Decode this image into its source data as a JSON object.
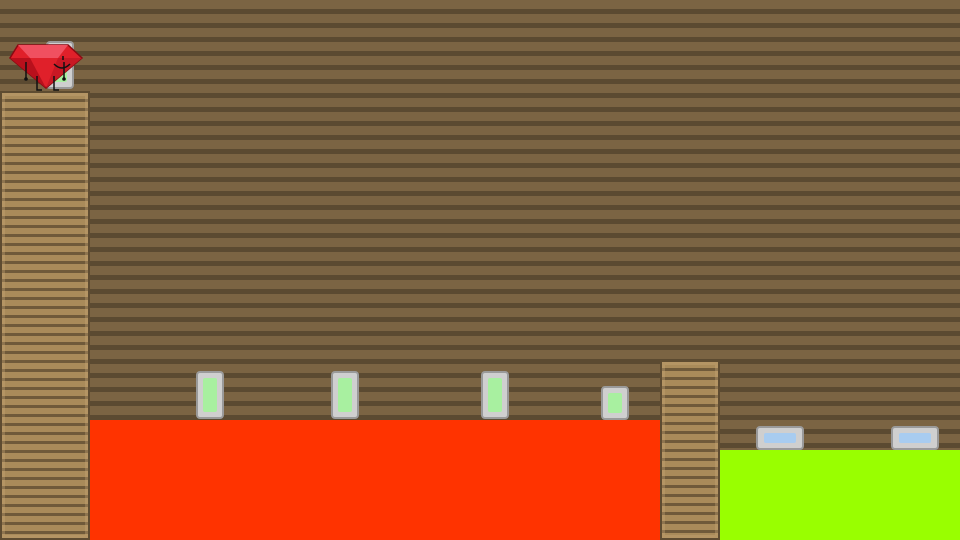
{
  "scene": {
    "colors": {
      "background": "#7b6443",
      "wall": "#a98b5a",
      "lava": "#ff3300",
      "acid": "#99ff00",
      "gem_green": "#a8f0a0",
      "pad_blue": "#a8ccf0",
      "player": "#e0202a"
    },
    "player": {
      "character": "ruby",
      "icon": "ruby-character-icon"
    },
    "hazards": [
      "lava",
      "acid"
    ],
    "collectibles": [
      "green-gem",
      "green-gem",
      "green-gem",
      "green-gem",
      "green-gem"
    ],
    "pads": [
      "blue-pad",
      "blue-pad"
    ]
  }
}
